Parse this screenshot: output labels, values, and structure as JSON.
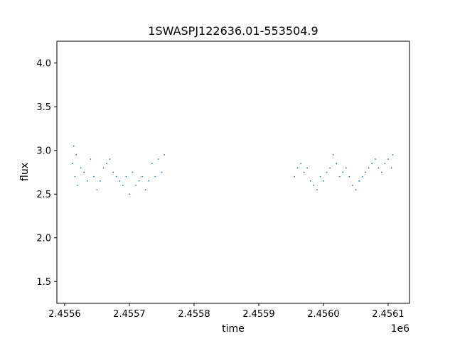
{
  "chart_data": {
    "type": "scatter",
    "title": "1SWASPJ122636.01-553504.9",
    "xlabel": "time",
    "ylabel": "flux",
    "x_offset_label": "1e6",
    "xlim": [
      2455588,
      2456133
    ],
    "ylim": [
      1.25,
      4.25
    ],
    "x_ticks": [
      2455600,
      2455700,
      2455800,
      2455900,
      2456000,
      2456100
    ],
    "x_tick_labels": [
      "2.4556",
      "2.4557",
      "2.4558",
      "2.4559",
      "2.4560",
      "2.4561"
    ],
    "y_ticks": [
      1.5,
      2.0,
      2.5,
      3.0,
      3.5,
      4.0
    ],
    "y_tick_labels": [
      "1.5",
      "2.0",
      "2.5",
      "3.0",
      "3.5",
      "4.0"
    ],
    "grid": false,
    "marker_color": "#1f77b4",
    "series": [
      {
        "values": [
          [
            2455612,
            2.85
          ],
          [
            2455614,
            3.05
          ],
          [
            2455616,
            2.7
          ],
          [
            2455618,
            2.95
          ],
          [
            2455620,
            2.6
          ],
          [
            2455625,
            2.8
          ],
          [
            2455630,
            2.75
          ],
          [
            2455635,
            2.65
          ],
          [
            2455640,
            2.9
          ],
          [
            2455645,
            2.7
          ],
          [
            2455650,
            2.55
          ],
          [
            2455655,
            2.65
          ],
          [
            2455660,
            2.8
          ],
          [
            2455665,
            2.85
          ],
          [
            2455670,
            2.9
          ],
          [
            2455675,
            2.75
          ],
          [
            2455680,
            2.7
          ],
          [
            2455685,
            2.65
          ],
          [
            2455690,
            2.6
          ],
          [
            2455695,
            2.7
          ],
          [
            2455700,
            2.5
          ],
          [
            2455705,
            2.75
          ],
          [
            2455710,
            2.6
          ],
          [
            2455715,
            2.65
          ],
          [
            2455720,
            2.7
          ],
          [
            2455725,
            2.55
          ],
          [
            2455730,
            2.65
          ],
          [
            2455735,
            2.85
          ],
          [
            2455740,
            2.7
          ],
          [
            2455745,
            2.9
          ],
          [
            2455750,
            2.75
          ],
          [
            2455754,
            2.95
          ],
          [
            2455955,
            2.7
          ],
          [
            2455960,
            2.8
          ],
          [
            2455965,
            2.85
          ],
          [
            2455970,
            2.75
          ],
          [
            2455975,
            2.8
          ],
          [
            2455980,
            2.65
          ],
          [
            2455985,
            2.6
          ],
          [
            2455990,
            2.55
          ],
          [
            2455995,
            2.7
          ],
          [
            2456000,
            2.65
          ],
          [
            2456005,
            2.75
          ],
          [
            2456010,
            2.8
          ],
          [
            2456015,
            2.95
          ],
          [
            2456020,
            2.85
          ],
          [
            2456025,
            2.7
          ],
          [
            2456030,
            2.75
          ],
          [
            2456035,
            2.8
          ],
          [
            2456040,
            2.7
          ],
          [
            2456045,
            2.6
          ],
          [
            2456050,
            2.55
          ],
          [
            2456055,
            2.65
          ],
          [
            2456060,
            2.7
          ],
          [
            2456065,
            2.75
          ],
          [
            2456070,
            2.8
          ],
          [
            2456075,
            2.85
          ],
          [
            2456080,
            2.9
          ],
          [
            2456085,
            2.8
          ],
          [
            2456090,
            2.75
          ],
          [
            2456095,
            2.85
          ],
          [
            2456100,
            2.9
          ],
          [
            2456105,
            2.8
          ],
          [
            2456107,
            2.95
          ]
        ]
      }
    ]
  }
}
